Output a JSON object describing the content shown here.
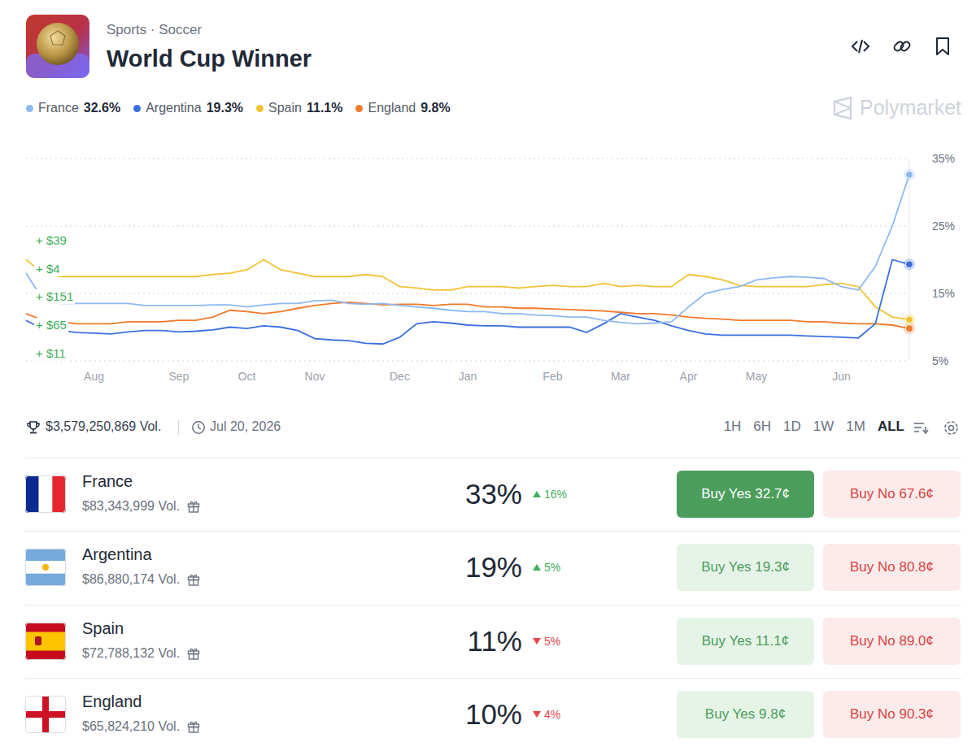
{
  "header": {
    "breadcrumb": "Sports · Soccer",
    "title": "World Cup Winner",
    "watermark": "Polymarket"
  },
  "legend_labels": [
    "32.6%",
    "19.3%",
    "11.1%",
    "9.8%"
  ],
  "chart_data": {
    "type": "line",
    "legend": "top-left",
    "marker": "last",
    "grid": true,
    "categories": [
      null,
      null,
      null,
      null,
      "Aug",
      null,
      null,
      null,
      null,
      "Sep",
      null,
      null,
      null,
      "Oct",
      null,
      null,
      null,
      "Nov",
      null,
      null,
      null,
      null,
      "Dec",
      null,
      null,
      null,
      "Jan",
      null,
      null,
      null,
      null,
      "Feb",
      null,
      null,
      null,
      "Mar",
      null,
      null,
      null,
      "Apr",
      null,
      null,
      null,
      "May",
      null,
      null,
      null,
      null,
      "Jun",
      null,
      null,
      null,
      null
    ],
    "series": [
      {
        "name": "France",
        "color": "#8db8f2",
        "line_style": "solid",
        "values": [
          18,
          14,
          13.5,
          13.5,
          13.5,
          13.5,
          13.5,
          13.2,
          13.2,
          13.2,
          13.2,
          13.3,
          13.3,
          13,
          13.3,
          13.5,
          13.5,
          13.9,
          14,
          13.5,
          13.4,
          13.5,
          13.2,
          13,
          12.8,
          12.5,
          12.3,
          12.3,
          12,
          12,
          11.8,
          11.7,
          11.5,
          11.5,
          11,
          10.7,
          10.5,
          10.6,
          10.8,
          13,
          15,
          15.6,
          16,
          17,
          17.3,
          17.5,
          17.4,
          17.2,
          16,
          15.5,
          19,
          25,
          32.6
        ]
      },
      {
        "name": "Argentina",
        "color": "#3b6fe0",
        "line_style": "solid",
        "values": [
          11,
          9.7,
          9.5,
          9.2,
          9.1,
          9,
          9.3,
          9.5,
          9.5,
          9.3,
          9.4,
          9.6,
          10,
          9.8,
          10.2,
          10,
          9.5,
          8.3,
          8.1,
          8,
          7.6,
          7.5,
          8.5,
          10.5,
          10.8,
          10.6,
          10.3,
          10.2,
          10.2,
          10,
          10,
          10,
          10,
          9.2,
          10.5,
          12,
          11.5,
          11,
          10.2,
          9.5,
          9,
          8.8,
          8.8,
          8.8,
          8.8,
          8.8,
          8.7,
          8.6,
          8.5,
          8.4,
          10.5,
          20,
          19.3
        ]
      },
      {
        "name": "Spain",
        "color": "#f2c233",
        "line_style": "solid",
        "values": [
          20,
          18,
          17.5,
          17.5,
          17.5,
          17.5,
          17.5,
          17.5,
          17.5,
          17.5,
          17.5,
          17.8,
          18,
          18.5,
          20,
          18.5,
          18,
          17.5,
          17.5,
          17.5,
          17.8,
          17.5,
          16,
          15.8,
          15.5,
          15.5,
          16,
          16,
          16,
          15.8,
          16,
          16.2,
          16,
          16,
          16.5,
          16,
          16.2,
          16,
          16,
          17.8,
          17.5,
          17,
          16.2,
          16,
          16,
          16,
          16,
          16.3,
          16.5,
          16,
          13,
          11.5,
          11.1
        ]
      },
      {
        "name": "England",
        "color": "#f07a2a",
        "line_style": "solid",
        "values": [
          12,
          11,
          10.8,
          10.5,
          10.5,
          10.5,
          10.8,
          10.8,
          10.8,
          11,
          11,
          11.5,
          12.5,
          12.3,
          12,
          12.3,
          12.8,
          13.2,
          13.5,
          13.7,
          13.5,
          13.3,
          13.4,
          13.4,
          13.2,
          13.4,
          13.4,
          13,
          13,
          12.8,
          12.8,
          12.7,
          12.6,
          12.5,
          12.4,
          12.2,
          12,
          12,
          11.8,
          11.5,
          11.3,
          11.2,
          11,
          11,
          11,
          11,
          10.8,
          10.8,
          10.6,
          10.5,
          10.5,
          10.3,
          9.8
        ]
      }
    ],
    "ylim": [
      5,
      35
    ],
    "yticks": [
      {
        "value": 5,
        "label": "5%"
      },
      {
        "value": 15,
        "label": "15%"
      },
      {
        "value": 25,
        "label": "25%"
      },
      {
        "value": 35,
        "label": "35%"
      }
    ],
    "annotations": [
      "+ $39",
      "+ $4",
      "+ $151",
      "+ $65",
      "+ $11"
    ]
  },
  "footer": {
    "volume": "$3,579,250,869 Vol.",
    "end_date": "Jul 20, 2026",
    "ranges": [
      "1H",
      "6H",
      "1D",
      "1W",
      "1M",
      "ALL"
    ],
    "active_range": "ALL"
  },
  "table": {
    "rows": [
      {
        "name": "France",
        "volume": "$83,343,999 Vol.",
        "chance": "33%",
        "change": "16%",
        "direction": "up",
        "buy_yes": "Buy Yes 32.7¢",
        "buy_no": "Buy No 67.6¢"
      },
      {
        "name": "Argentina",
        "volume": "$86,880,174 Vol.",
        "chance": "19%",
        "change": "5%",
        "direction": "up",
        "buy_yes": "Buy Yes 19.3¢",
        "buy_no": "Buy No 80.8¢"
      },
      {
        "name": "Spain",
        "volume": "$72,788,132 Vol.",
        "chance": "11%",
        "change": "5%",
        "direction": "down",
        "buy_yes": "Buy Yes 11.1¢",
        "buy_no": "Buy No 89.0¢"
      },
      {
        "name": "England",
        "volume": "$65,824,210 Vol.",
        "chance": "10%",
        "change": "4%",
        "direction": "down",
        "buy_yes": "Buy Yes 9.8¢",
        "buy_no": "Buy No 90.3¢"
      }
    ]
  }
}
